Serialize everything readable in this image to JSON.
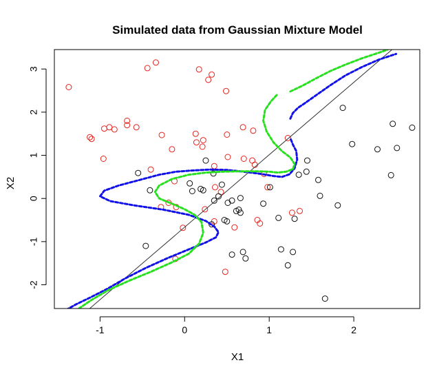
{
  "chart_data": {
    "type": "scatter",
    "title": "Simulated data from Gaussian Mixture Model",
    "xlabel": "X1",
    "ylabel": "X2",
    "xlim": [
      -1.54,
      2.78
    ],
    "ylim": [
      -2.55,
      3.45
    ],
    "x_ticks": [
      -1,
      0,
      1,
      2
    ],
    "x_tick_labels": [
      "-1",
      "0",
      "1",
      "2"
    ],
    "y_ticks": [
      -2,
      -1,
      0,
      1,
      2,
      3
    ],
    "y_tick_labels": [
      "-2",
      "-1",
      "0",
      "1",
      "2",
      "3"
    ],
    "grid": false,
    "legend": "none",
    "series": [
      {
        "kind": "points",
        "marker": "open-circle",
        "color": "#e8221d",
        "points": [
          [
            -1.37,
            2.58
          ],
          [
            -0.44,
            3.02
          ],
          [
            -0.34,
            3.15
          ],
          [
            0.17,
            2.99
          ],
          [
            0.32,
            2.87
          ],
          [
            0.28,
            2.75
          ],
          [
            0.49,
            2.49
          ],
          [
            -1.12,
            1.42
          ],
          [
            -1.1,
            1.38
          ],
          [
            -0.95,
            1.62
          ],
          [
            -0.89,
            1.65
          ],
          [
            -0.83,
            1.6
          ],
          [
            -0.68,
            1.8
          ],
          [
            -0.68,
            1.7
          ],
          [
            -0.57,
            1.65
          ],
          [
            -0.27,
            1.47
          ],
          [
            -0.15,
            1.14
          ],
          [
            0.13,
            1.5
          ],
          [
            0.14,
            1.3
          ],
          [
            0.22,
            1.35
          ],
          [
            0.21,
            1.2
          ],
          [
            0.5,
            1.48
          ],
          [
            0.69,
            1.65
          ],
          [
            0.81,
            1.57
          ],
          [
            -0.96,
            0.92
          ],
          [
            -0.4,
            0.67
          ],
          [
            -0.12,
            0.4
          ],
          [
            0.35,
            0.75
          ],
          [
            0.51,
            0.96
          ],
          [
            0.7,
            0.92
          ],
          [
            0.8,
            0.88
          ],
          [
            0.83,
            0.78
          ],
          [
            0.94,
            0.57
          ],
          [
            1.22,
            1.4
          ],
          [
            0.98,
            0.26
          ],
          [
            -0.28,
            -0.2
          ],
          [
            -0.19,
            -0.1
          ],
          [
            -0.1,
            -0.2
          ],
          [
            0.24,
            -0.25
          ],
          [
            0.35,
            -0.53
          ],
          [
            -0.02,
            -0.68
          ],
          [
            0.43,
            0.15
          ],
          [
            0.36,
            0.26
          ],
          [
            0.86,
            -0.5
          ],
          [
            0.89,
            -0.58
          ],
          [
            1.27,
            -0.33
          ],
          [
            1.36,
            -0.29
          ],
          [
            0.59,
            -0.67
          ],
          [
            0.48,
            -1.7
          ],
          [
            -0.11,
            -1.4
          ]
        ]
      },
      {
        "kind": "points",
        "marker": "open-circle",
        "color": "#111111",
        "points": [
          [
            -0.55,
            0.59
          ],
          [
            -0.41,
            0.19
          ],
          [
            0.25,
            0.88
          ],
          [
            0.34,
            0.58
          ],
          [
            0.06,
            0.35
          ],
          [
            0.19,
            0.22
          ],
          [
            0.22,
            0.19
          ],
          [
            0.09,
            0.17
          ],
          [
            0.44,
            0.32
          ],
          [
            0.35,
            -0.05
          ],
          [
            0.4,
            0.05
          ],
          [
            0.51,
            -0.1
          ],
          [
            0.56,
            -0.05
          ],
          [
            0.61,
            -0.29
          ],
          [
            0.64,
            -0.26
          ],
          [
            0.66,
            -0.33
          ],
          [
            0.47,
            -0.5
          ],
          [
            0.5,
            -0.53
          ],
          [
            0.32,
            -0.6
          ],
          [
            0.66,
            0.01
          ],
          [
            1.01,
            0.26
          ],
          [
            0.93,
            -0.12
          ],
          [
            1.11,
            -0.45
          ],
          [
            1.3,
            -0.47
          ],
          [
            1.44,
            0.62
          ],
          [
            1.45,
            0.88
          ],
          [
            1.35,
            0.55
          ],
          [
            1.58,
            0.43
          ],
          [
            1.6,
            0.06
          ],
          [
            1.81,
            -0.16
          ],
          [
            1.87,
            2.1
          ],
          [
            1.98,
            1.26
          ],
          [
            2.28,
            1.14
          ],
          [
            2.46,
            1.73
          ],
          [
            2.51,
            1.17
          ],
          [
            2.69,
            1.64
          ],
          [
            2.44,
            0.54
          ],
          [
            -0.46,
            -1.1
          ],
          [
            0.56,
            -1.3
          ],
          [
            0.69,
            -1.24
          ],
          [
            0.72,
            -1.39
          ],
          [
            1.14,
            -1.18
          ],
          [
            1.28,
            -1.24
          ],
          [
            1.22,
            -1.55
          ],
          [
            1.66,
            -2.32
          ]
        ]
      },
      {
        "kind": "line",
        "style": "solid",
        "color": "#333333",
        "points": [
          [
            -1.54,
            -3.25
          ],
          [
            2.78,
            4.0
          ]
        ]
      },
      {
        "kind": "curve",
        "style": "dashed",
        "color": "#1212e8",
        "points": [
          [
            -1.4,
            -2.58
          ],
          [
            -1.28,
            -2.45
          ],
          [
            -1.12,
            -2.3
          ],
          [
            -0.92,
            -2.1
          ],
          [
            -0.7,
            -1.85
          ],
          [
            -0.45,
            -1.6
          ],
          [
            -0.2,
            -1.38
          ],
          [
            0.05,
            -1.18
          ],
          [
            0.25,
            -1.02
          ],
          [
            0.37,
            -0.9
          ],
          [
            0.4,
            -0.78
          ],
          [
            0.35,
            -0.65
          ],
          [
            0.25,
            -0.52
          ],
          [
            0.05,
            -0.38
          ],
          [
            -0.25,
            -0.26
          ],
          [
            -0.6,
            -0.16
          ],
          [
            -0.88,
            -0.06
          ],
          [
            -1.0,
            0.05
          ],
          [
            -0.95,
            0.18
          ],
          [
            -0.78,
            0.3
          ],
          [
            -0.55,
            0.42
          ],
          [
            -0.3,
            0.55
          ],
          [
            -0.1,
            0.62
          ],
          [
            0.1,
            0.65
          ],
          [
            0.3,
            0.67
          ],
          [
            0.5,
            0.66
          ],
          [
            0.7,
            0.62
          ],
          [
            0.9,
            0.57
          ],
          [
            1.05,
            0.52
          ],
          [
            1.15,
            0.5
          ],
          [
            1.24,
            0.56
          ],
          [
            1.3,
            0.7
          ],
          [
            1.33,
            0.9
          ],
          [
            1.32,
            1.1
          ],
          [
            1.28,
            1.25
          ],
          [
            1.25,
            1.4
          ]
        ]
      },
      {
        "kind": "curve",
        "style": "dashed",
        "color": "#1212e8",
        "points": [
          [
            1.25,
            1.85
          ],
          [
            1.28,
            1.98
          ],
          [
            1.34,
            2.1
          ],
          [
            1.43,
            2.22
          ],
          [
            1.56,
            2.4
          ],
          [
            1.72,
            2.62
          ],
          [
            1.9,
            2.85
          ],
          [
            2.1,
            3.05
          ],
          [
            2.3,
            3.22
          ],
          [
            2.5,
            3.35
          ]
        ]
      },
      {
        "kind": "curve",
        "style": "dashed",
        "color": "#28e01f",
        "points": [
          [
            -1.25,
            -2.55
          ],
          [
            -1.1,
            -2.35
          ],
          [
            -0.9,
            -2.12
          ],
          [
            -0.65,
            -1.9
          ],
          [
            -0.4,
            -1.7
          ],
          [
            -0.15,
            -1.48
          ],
          [
            0.05,
            -1.28
          ],
          [
            0.17,
            -1.05
          ],
          [
            0.22,
            -0.8
          ],
          [
            0.2,
            -0.55
          ],
          [
            0.12,
            -0.38
          ],
          [
            0.0,
            -0.25
          ],
          [
            -0.15,
            -0.12
          ],
          [
            -0.3,
            0.0
          ],
          [
            -0.35,
            0.15
          ],
          [
            -0.3,
            0.3
          ],
          [
            -0.15,
            0.45
          ],
          [
            0.05,
            0.55
          ],
          [
            0.25,
            0.6
          ],
          [
            0.45,
            0.62
          ],
          [
            0.65,
            0.63
          ],
          [
            0.85,
            0.63
          ],
          [
            1.0,
            0.62
          ],
          [
            1.1,
            0.6
          ],
          [
            1.2,
            0.62
          ],
          [
            1.28,
            0.68
          ],
          [
            1.3,
            0.8
          ],
          [
            1.25,
            0.95
          ],
          [
            1.15,
            1.1
          ],
          [
            1.05,
            1.3
          ],
          [
            0.97,
            1.55
          ],
          [
            0.93,
            1.8
          ],
          [
            0.95,
            2.05
          ],
          [
            1.02,
            2.25
          ],
          [
            1.1,
            2.42
          ]
        ]
      },
      {
        "kind": "curve",
        "style": "dashed",
        "color": "#28e01f",
        "points": [
          [
            1.25,
            2.48
          ],
          [
            1.4,
            2.62
          ],
          [
            1.55,
            2.78
          ],
          [
            1.72,
            2.95
          ],
          [
            1.9,
            3.1
          ],
          [
            2.1,
            3.25
          ],
          [
            2.3,
            3.38
          ],
          [
            2.4,
            3.45
          ]
        ]
      }
    ]
  }
}
